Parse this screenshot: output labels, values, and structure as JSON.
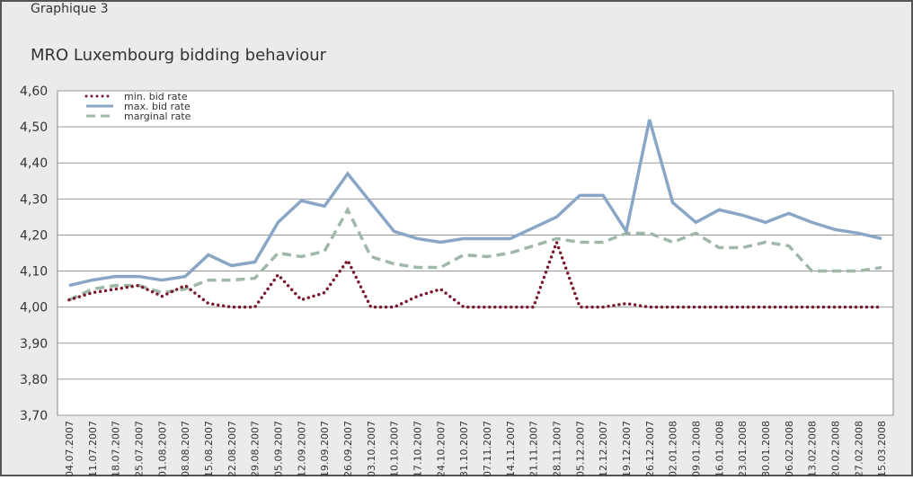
{
  "header": {
    "label": "Graphique 3"
  },
  "chart_data": {
    "type": "line",
    "title": "MRO Luxembourg bidding behaviour",
    "categories": [
      "04.07.2007",
      "11.07.2007",
      "18.07.2007",
      "25.07.2007",
      "01.08.2007",
      "08.08.2007",
      "15.08.2007",
      "22.08.2007",
      "29.08.2007",
      "05.09.2007",
      "12.09.2007",
      "19.09.2007",
      "26.09.2007",
      "03.10.2007",
      "10.10.2007",
      "17.10.2007",
      "24.10.2007",
      "31.10.2007",
      "07.11.2007",
      "14.11.2007",
      "21.11.2007",
      "28.11.2007",
      "05.12.2007",
      "12.12.2007",
      "19.12.2007",
      "26.12.2007",
      "02.01.2008",
      "09.01.2008",
      "16.01.2008",
      "23.01.2008",
      "30.01.2008",
      "06.02.2008",
      "13.02.2008",
      "20.02.2008",
      "27.02.2008",
      "15.03.2008"
    ],
    "series": [
      {
        "name": "min. bid rate",
        "color": "#7a1a2e",
        "style": "dotted",
        "values": [
          4.02,
          4.04,
          4.05,
          4.06,
          4.03,
          4.06,
          4.01,
          4.0,
          4.0,
          4.09,
          4.02,
          4.04,
          4.13,
          4.0,
          4.0,
          4.03,
          4.05,
          4.0,
          4.0,
          4.0,
          4.0,
          4.18,
          4.0,
          4.0,
          4.01,
          4.0,
          4.0,
          4.0,
          4.0,
          4.0,
          4.0,
          4.0,
          4.0,
          4.0,
          4.0,
          4.0
        ]
      },
      {
        "name": "max. bid rate",
        "color": "#8aa6c6",
        "style": "solid",
        "values": [
          4.06,
          4.075,
          4.085,
          4.085,
          4.075,
          4.085,
          4.145,
          4.115,
          4.125,
          4.235,
          4.295,
          4.28,
          4.37,
          4.29,
          4.21,
          4.19,
          4.18,
          4.19,
          4.19,
          4.19,
          4.22,
          4.25,
          4.31,
          4.31,
          4.21,
          4.52,
          4.29,
          4.235,
          4.27,
          4.255,
          4.235,
          4.26,
          4.235,
          4.215,
          4.205,
          4.19
        ]
      },
      {
        "name": "marginal rate",
        "color": "#9fb8a8",
        "style": "dashed",
        "values": [
          4.02,
          4.05,
          4.06,
          4.06,
          4.04,
          4.05,
          4.075,
          4.075,
          4.08,
          4.15,
          4.14,
          4.155,
          4.27,
          4.14,
          4.12,
          4.11,
          4.11,
          4.145,
          4.14,
          4.15,
          4.17,
          4.19,
          4.18,
          4.18,
          4.205,
          4.205,
          4.18,
          4.205,
          4.165,
          4.165,
          4.18,
          4.17,
          4.1,
          4.1,
          4.1,
          4.11
        ]
      }
    ],
    "ylim": [
      3.7,
      4.6
    ],
    "yticks": [
      {
        "value": 3.7,
        "label": "3,70"
      },
      {
        "value": 3.8,
        "label": "3,80"
      },
      {
        "value": 3.9,
        "label": "3,90"
      },
      {
        "value": 4.0,
        "label": "4,00"
      },
      {
        "value": 4.1,
        "label": "4,10"
      },
      {
        "value": 4.2,
        "label": "4,20"
      },
      {
        "value": 4.3,
        "label": "4,30"
      },
      {
        "value": 4.4,
        "label": "4,40"
      },
      {
        "value": 4.5,
        "label": "4,50"
      },
      {
        "value": 4.6,
        "label": "4,60"
      }
    ],
    "grid": true
  }
}
